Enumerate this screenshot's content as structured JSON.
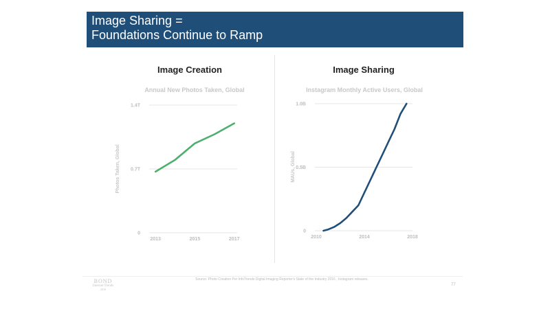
{
  "title": {
    "line1": "Image Sharing =",
    "line2": "Foundations Continue to Ramp"
  },
  "left_panel": {
    "heading": "Image Creation"
  },
  "right_panel": {
    "heading": "Image Sharing"
  },
  "footer": {
    "source": "Source: Photo Creation Per InfoTrends Digital Imaging Reporter's State of the Industry 2016 , Instagram releases.",
    "page_number": "77",
    "logo": {
      "line1": "BOND",
      "line2": "Internet Trends",
      "line3": "2018"
    }
  },
  "colors": {
    "title_bar": "#1f4e79",
    "line_left": "#4caf6d",
    "line_right": "#1f4e79"
  },
  "chart_data": [
    {
      "type": "line",
      "title": "Annual New Photos Taken, Global",
      "xlabel": "",
      "ylabel": "Photos Taken, Global",
      "x": [
        2013,
        2014,
        2015,
        2016,
        2017
      ],
      "series": [
        {
          "values": [
            0.67,
            0.8,
            0.98,
            1.08,
            1.2
          ]
        }
      ],
      "xticks": [
        "2013",
        "2015",
        "2017"
      ],
      "xtick_values": [
        2013,
        2015,
        2017
      ],
      "yticks": [
        "0",
        "0.7T",
        "1.4T"
      ],
      "ytick_values": [
        0,
        0.7,
        1.4
      ],
      "xlim": [
        2012.75,
        2017.15
      ],
      "ylim": [
        0,
        1.4
      ],
      "grid": true
    },
    {
      "type": "line",
      "title": "Instagram Monthly Active Users, Global",
      "xlabel": "",
      "ylabel": "MAUs, Global",
      "x": [
        2010.6,
        2011,
        2011.5,
        2012,
        2012.5,
        2013,
        2013.5,
        2014,
        2014.5,
        2015,
        2015.5,
        2016,
        2016.5,
        2017,
        2017.5
      ],
      "series": [
        {
          "values": [
            0,
            0.01,
            0.03,
            0.06,
            0.1,
            0.15,
            0.2,
            0.3,
            0.4,
            0.5,
            0.6,
            0.7,
            0.8,
            0.92,
            1.0
          ]
        }
      ],
      "xticks": [
        "2010",
        "2014",
        "2018"
      ],
      "xtick_values": [
        2010,
        2014,
        2018
      ],
      "yticks": [
        "0",
        "0.5B",
        "1.0B"
      ],
      "ytick_values": [
        0,
        0.5,
        1.0
      ],
      "xlim": [
        2010,
        2018
      ],
      "ylim": [
        0,
        1.0
      ],
      "grid": true
    }
  ]
}
